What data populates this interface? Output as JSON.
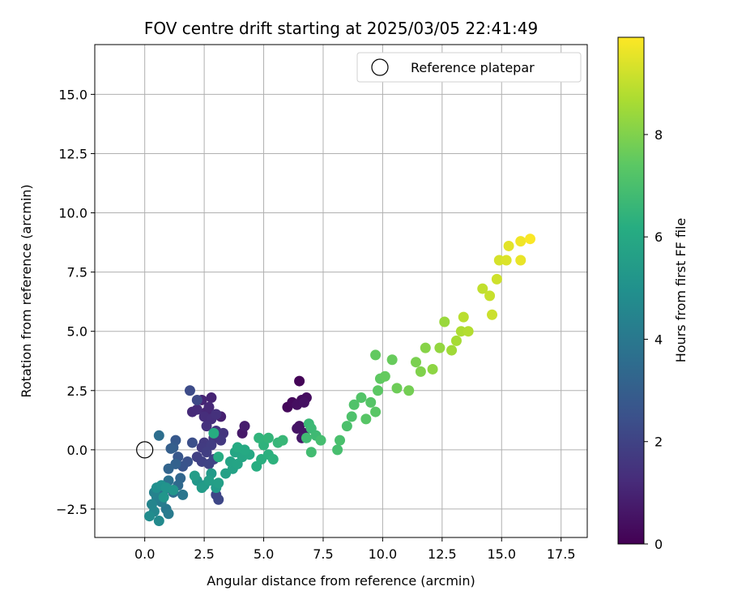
{
  "chart_data": {
    "type": "scatter",
    "title": "FOV centre drift starting at 2025/03/05 22:41:49",
    "xlabel": "Angular distance from reference (arcmin)",
    "ylabel": "Rotation from reference (arcmin)",
    "xlim": [
      -2.1,
      18.6
    ],
    "ylim": [
      -3.7,
      17.1
    ],
    "xticks": [
      0.0,
      2.5,
      5.0,
      7.5,
      10.0,
      12.5,
      15.0,
      17.5
    ],
    "xtick_labels": [
      "0.0",
      "2.5",
      "5.0",
      "7.5",
      "10.0",
      "12.5",
      "15.0",
      "17.5"
    ],
    "yticks": [
      -2.5,
      0.0,
      2.5,
      5.0,
      7.5,
      10.0,
      12.5,
      15.0
    ],
    "ytick_labels": [
      "−2.5",
      "0.0",
      "2.5",
      "5.0",
      "7.5",
      "10.0",
      "12.5",
      "15.0"
    ],
    "grid": true,
    "legend": {
      "placement": "top-right",
      "entries": [
        "Reference platepar"
      ]
    },
    "reference_point": {
      "x": 0.0,
      "y": 0.0
    },
    "colorbar": {
      "label": "Hours from first FF file",
      "range": [
        0,
        9.9
      ],
      "ticks": [
        0,
        2,
        4,
        6,
        8
      ],
      "tick_labels": [
        "0",
        "2",
        "4",
        "6",
        "8"
      ],
      "colormap": "viridis"
    },
    "points": [
      {
        "x": 6.5,
        "y": 2.9,
        "c": 0.1
      },
      {
        "x": 6.0,
        "y": 1.8,
        "c": 0.2
      },
      {
        "x": 6.2,
        "y": 2.0,
        "c": 0.25
      },
      {
        "x": 6.6,
        "y": 2.1,
        "c": 0.3
      },
      {
        "x": 6.8,
        "y": 2.2,
        "c": 0.35
      },
      {
        "x": 6.4,
        "y": 1.9,
        "c": 0.4
      },
      {
        "x": 6.7,
        "y": 2.0,
        "c": 0.45
      },
      {
        "x": 6.5,
        "y": 1.0,
        "c": 0.5
      },
      {
        "x": 6.4,
        "y": 0.9,
        "c": 0.55
      },
      {
        "x": 6.7,
        "y": 0.7,
        "c": 0.6
      },
      {
        "x": 6.6,
        "y": 0.5,
        "c": 0.65
      },
      {
        "x": 4.1,
        "y": 0.7,
        "c": 0.7
      },
      {
        "x": 4.2,
        "y": 1.0,
        "c": 0.8
      },
      {
        "x": 3.2,
        "y": 1.4,
        "c": 0.9
      },
      {
        "x": 2.8,
        "y": 2.2,
        "c": 1.0
      },
      {
        "x": 2.4,
        "y": 2.1,
        "c": 1.05
      },
      {
        "x": 2.6,
        "y": 1.6,
        "c": 1.1
      },
      {
        "x": 2.7,
        "y": 1.8,
        "c": 1.15
      },
      {
        "x": 2.0,
        "y": 1.6,
        "c": 1.2
      },
      {
        "x": 2.2,
        "y": 1.7,
        "c": 1.25
      },
      {
        "x": 2.5,
        "y": 1.4,
        "c": 1.3
      },
      {
        "x": 2.8,
        "y": 1.3,
        "c": 1.35
      },
      {
        "x": 3.0,
        "y": 1.5,
        "c": 1.4
      },
      {
        "x": 2.6,
        "y": 1.0,
        "c": 1.45
      },
      {
        "x": 3.0,
        "y": 0.8,
        "c": 1.5
      },
      {
        "x": 3.3,
        "y": 0.7,
        "c": 1.55
      },
      {
        "x": 2.9,
        "y": 0.5,
        "c": 1.6
      },
      {
        "x": 3.2,
        "y": 0.4,
        "c": 1.65
      },
      {
        "x": 2.5,
        "y": 0.3,
        "c": 1.7
      },
      {
        "x": 2.4,
        "y": 0.1,
        "c": 1.75
      },
      {
        "x": 2.8,
        "y": 0.2,
        "c": 1.8
      },
      {
        "x": 2.6,
        "y": -0.1,
        "c": 1.85
      },
      {
        "x": 2.2,
        "y": -0.3,
        "c": 1.9
      },
      {
        "x": 2.4,
        "y": -0.5,
        "c": 1.95
      },
      {
        "x": 2.7,
        "y": -0.6,
        "c": 2.0
      },
      {
        "x": 2.9,
        "y": -0.4,
        "c": 2.05
      },
      {
        "x": 3.0,
        "y": -1.9,
        "c": 2.1
      },
      {
        "x": 3.1,
        "y": -2.1,
        "c": 2.15
      },
      {
        "x": 2.2,
        "y": 2.1,
        "c": 2.2
      },
      {
        "x": 1.9,
        "y": 2.5,
        "c": 2.3
      },
      {
        "x": 2.0,
        "y": 0.3,
        "c": 2.4
      },
      {
        "x": 1.8,
        "y": -0.5,
        "c": 2.5
      },
      {
        "x": 1.6,
        "y": -0.7,
        "c": 2.6
      },
      {
        "x": 1.4,
        "y": -0.3,
        "c": 2.7
      },
      {
        "x": 1.3,
        "y": 0.4,
        "c": 2.8
      },
      {
        "x": 1.2,
        "y": 0.1,
        "c": 2.9
      },
      {
        "x": 1.1,
        "y": 0.05,
        "c": 3.0
      },
      {
        "x": 1.3,
        "y": -0.6,
        "c": 3.1
      },
      {
        "x": 1.0,
        "y": -0.8,
        "c": 3.2
      },
      {
        "x": 1.5,
        "y": -1.2,
        "c": 3.3
      },
      {
        "x": 1.4,
        "y": -1.5,
        "c": 3.4
      },
      {
        "x": 1.2,
        "y": -1.8,
        "c": 3.5
      },
      {
        "x": 0.6,
        "y": 0.6,
        "c": 3.6
      },
      {
        "x": 1.0,
        "y": -1.3,
        "c": 3.7
      },
      {
        "x": 0.8,
        "y": -1.7,
        "c": 3.8
      },
      {
        "x": 1.6,
        "y": -1.9,
        "c": 3.9
      },
      {
        "x": 0.9,
        "y": -2.5,
        "c": 4.0
      },
      {
        "x": 1.0,
        "y": -2.7,
        "c": 4.1
      },
      {
        "x": 0.7,
        "y": -2.2,
        "c": 4.2
      },
      {
        "x": 0.5,
        "y": -2.0,
        "c": 4.3
      },
      {
        "x": 0.4,
        "y": -1.8,
        "c": 4.4
      },
      {
        "x": 0.3,
        "y": -2.3,
        "c": 4.5
      },
      {
        "x": 0.4,
        "y": -2.6,
        "c": 4.6
      },
      {
        "x": 0.6,
        "y": -3.0,
        "c": 4.7
      },
      {
        "x": 0.2,
        "y": -2.8,
        "c": 4.8
      },
      {
        "x": 0.5,
        "y": -1.6,
        "c": 4.9
      },
      {
        "x": 0.7,
        "y": -1.5,
        "c": 5.0
      },
      {
        "x": 0.9,
        "y": -1.6,
        "c": 5.1
      },
      {
        "x": 1.2,
        "y": -1.7,
        "c": 5.15
      },
      {
        "x": 0.8,
        "y": -2.0,
        "c": 5.2
      },
      {
        "x": 2.2,
        "y": -1.3,
        "c": 5.25
      },
      {
        "x": 2.5,
        "y": -1.5,
        "c": 5.3
      },
      {
        "x": 2.8,
        "y": -1.0,
        "c": 5.35
      },
      {
        "x": 3.0,
        "y": -1.6,
        "c": 5.4
      },
      {
        "x": 2.4,
        "y": -1.6,
        "c": 5.45
      },
      {
        "x": 2.1,
        "y": -1.1,
        "c": 5.5
      },
      {
        "x": 2.7,
        "y": -1.3,
        "c": 5.55
      },
      {
        "x": 3.1,
        "y": -1.4,
        "c": 5.6
      },
      {
        "x": 3.4,
        "y": -1.0,
        "c": 5.65
      },
      {
        "x": 3.7,
        "y": -0.8,
        "c": 5.7
      },
      {
        "x": 3.6,
        "y": -0.5,
        "c": 5.75
      },
      {
        "x": 3.9,
        "y": -0.6,
        "c": 5.8
      },
      {
        "x": 3.8,
        "y": -0.1,
        "c": 5.85
      },
      {
        "x": 4.1,
        "y": -0.3,
        "c": 5.9
      },
      {
        "x": 4.4,
        "y": -0.2,
        "c": 5.95
      },
      {
        "x": 4.2,
        "y": 0.0,
        "c": 6.0
      },
      {
        "x": 3.9,
        "y": 0.1,
        "c": 6.05
      },
      {
        "x": 3.1,
        "y": -0.3,
        "c": 6.1
      },
      {
        "x": 2.9,
        "y": 0.7,
        "c": 6.15
      },
      {
        "x": 4.7,
        "y": -0.7,
        "c": 6.2
      },
      {
        "x": 4.9,
        "y": -0.4,
        "c": 6.25
      },
      {
        "x": 5.2,
        "y": -0.2,
        "c": 6.3
      },
      {
        "x": 5.4,
        "y": -0.4,
        "c": 6.35
      },
      {
        "x": 5.0,
        "y": 0.2,
        "c": 6.4
      },
      {
        "x": 4.8,
        "y": 0.5,
        "c": 6.45
      },
      {
        "x": 5.2,
        "y": 0.5,
        "c": 6.5
      },
      {
        "x": 5.6,
        "y": 0.3,
        "c": 6.55
      },
      {
        "x": 5.8,
        "y": 0.4,
        "c": 6.6
      },
      {
        "x": 6.9,
        "y": 1.1,
        "c": 6.65
      },
      {
        "x": 7.0,
        "y": 0.9,
        "c": 6.7
      },
      {
        "x": 7.2,
        "y": 0.6,
        "c": 6.75
      },
      {
        "x": 6.8,
        "y": 0.5,
        "c": 6.8
      },
      {
        "x": 7.0,
        "y": -0.1,
        "c": 6.85
      },
      {
        "x": 7.4,
        "y": 0.4,
        "c": 6.9
      },
      {
        "x": 8.1,
        "y": 0.0,
        "c": 6.95
      },
      {
        "x": 8.2,
        "y": 0.4,
        "c": 7.0
      },
      {
        "x": 8.5,
        "y": 1.0,
        "c": 7.05
      },
      {
        "x": 8.7,
        "y": 1.4,
        "c": 7.1
      },
      {
        "x": 8.8,
        "y": 1.9,
        "c": 7.15
      },
      {
        "x": 9.1,
        "y": 2.2,
        "c": 7.2
      },
      {
        "x": 9.5,
        "y": 2.0,
        "c": 7.25
      },
      {
        "x": 9.3,
        "y": 1.3,
        "c": 7.3
      },
      {
        "x": 9.7,
        "y": 1.6,
        "c": 7.35
      },
      {
        "x": 9.8,
        "y": 2.5,
        "c": 7.4
      },
      {
        "x": 9.9,
        "y": 3.0,
        "c": 7.45
      },
      {
        "x": 9.7,
        "y": 4.0,
        "c": 7.5
      },
      {
        "x": 10.1,
        "y": 3.1,
        "c": 7.55
      },
      {
        "x": 10.4,
        "y": 3.8,
        "c": 7.6
      },
      {
        "x": 10.6,
        "y": 2.6,
        "c": 7.7
      },
      {
        "x": 11.1,
        "y": 2.5,
        "c": 7.8
      },
      {
        "x": 11.4,
        "y": 3.7,
        "c": 7.9
      },
      {
        "x": 11.6,
        "y": 3.3,
        "c": 8.0
      },
      {
        "x": 11.8,
        "y": 4.3,
        "c": 8.1
      },
      {
        "x": 12.1,
        "y": 3.4,
        "c": 8.2
      },
      {
        "x": 12.4,
        "y": 4.3,
        "c": 8.3
      },
      {
        "x": 12.6,
        "y": 5.4,
        "c": 8.4
      },
      {
        "x": 12.9,
        "y": 4.2,
        "c": 8.5
      },
      {
        "x": 13.1,
        "y": 4.6,
        "c": 8.6
      },
      {
        "x": 13.3,
        "y": 5.0,
        "c": 8.7
      },
      {
        "x": 13.6,
        "y": 5.0,
        "c": 8.8
      },
      {
        "x": 13.4,
        "y": 5.6,
        "c": 8.9
      },
      {
        "x": 14.2,
        "y": 6.8,
        "c": 9.0
      },
      {
        "x": 14.5,
        "y": 6.5,
        "c": 9.1
      },
      {
        "x": 14.6,
        "y": 5.7,
        "c": 9.15
      },
      {
        "x": 14.8,
        "y": 7.2,
        "c": 9.2
      },
      {
        "x": 14.9,
        "y": 8.0,
        "c": 9.3
      },
      {
        "x": 15.2,
        "y": 8.0,
        "c": 9.4
      },
      {
        "x": 15.3,
        "y": 8.6,
        "c": 9.5
      },
      {
        "x": 15.8,
        "y": 8.0,
        "c": 9.6
      },
      {
        "x": 15.8,
        "y": 8.8,
        "c": 9.7
      },
      {
        "x": 16.2,
        "y": 8.9,
        "c": 9.85
      }
    ]
  }
}
